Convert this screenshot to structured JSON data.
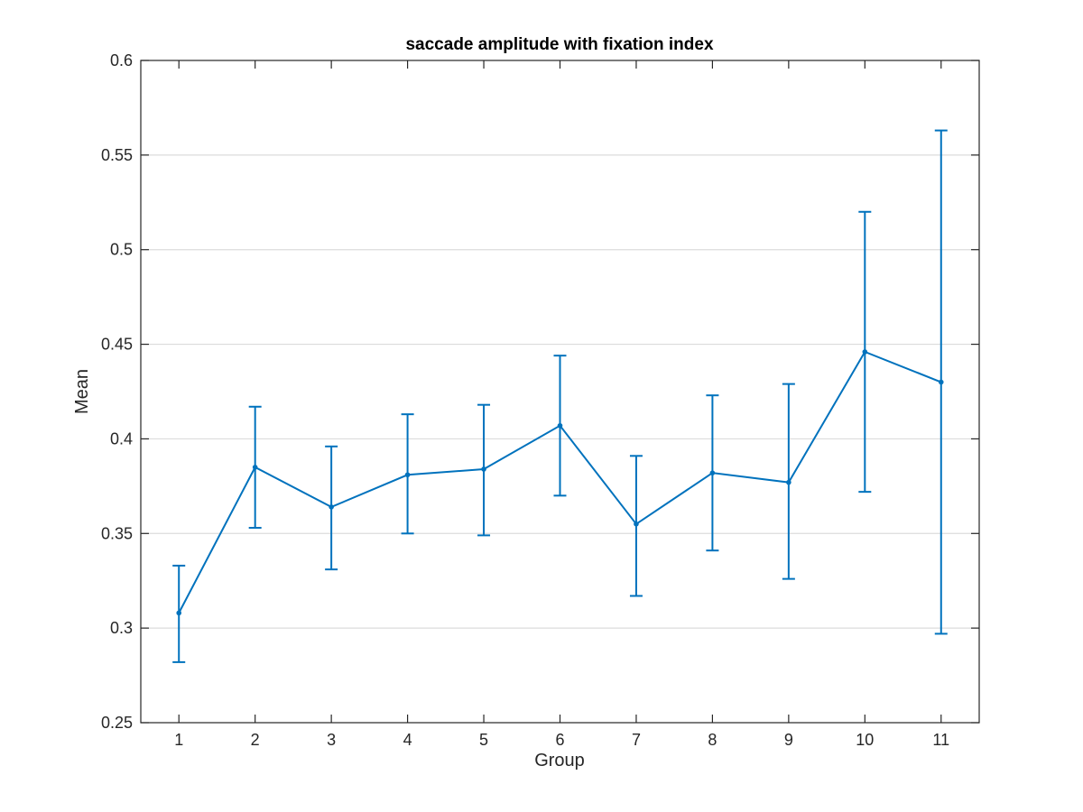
{
  "chart_data": {
    "type": "line",
    "title": "saccade amplitude with fixation index",
    "xlabel": "Group",
    "ylabel": "Mean",
    "x": [
      1,
      2,
      3,
      4,
      5,
      6,
      7,
      8,
      9,
      10,
      11
    ],
    "xlim": [
      0.5,
      11.5
    ],
    "ylim": [
      0.25,
      0.6
    ],
    "y_ticks": [
      0.25,
      0.3,
      0.35,
      0.4,
      0.45,
      0.5,
      0.55,
      0.6
    ],
    "y_tick_labels": [
      "0.25",
      "0.3",
      "0.35",
      "0.4",
      "0.45",
      "0.5",
      "0.55",
      "0.6"
    ],
    "x_tick_labels": [
      "1",
      "2",
      "3",
      "4",
      "5",
      "6",
      "7",
      "8",
      "9",
      "10",
      "11"
    ],
    "grid": "horizontal",
    "series": [
      {
        "values": [
          0.308,
          0.385,
          0.364,
          0.381,
          0.384,
          0.407,
          0.355,
          0.382,
          0.377,
          0.446,
          0.43
        ],
        "error_lower": [
          0.282,
          0.353,
          0.331,
          0.35,
          0.349,
          0.37,
          0.317,
          0.341,
          0.326,
          0.372,
          0.297
        ],
        "error_upper": [
          0.333,
          0.417,
          0.396,
          0.413,
          0.418,
          0.444,
          0.391,
          0.423,
          0.429,
          0.52,
          0.563
        ],
        "color": "#0072BD"
      }
    ]
  }
}
